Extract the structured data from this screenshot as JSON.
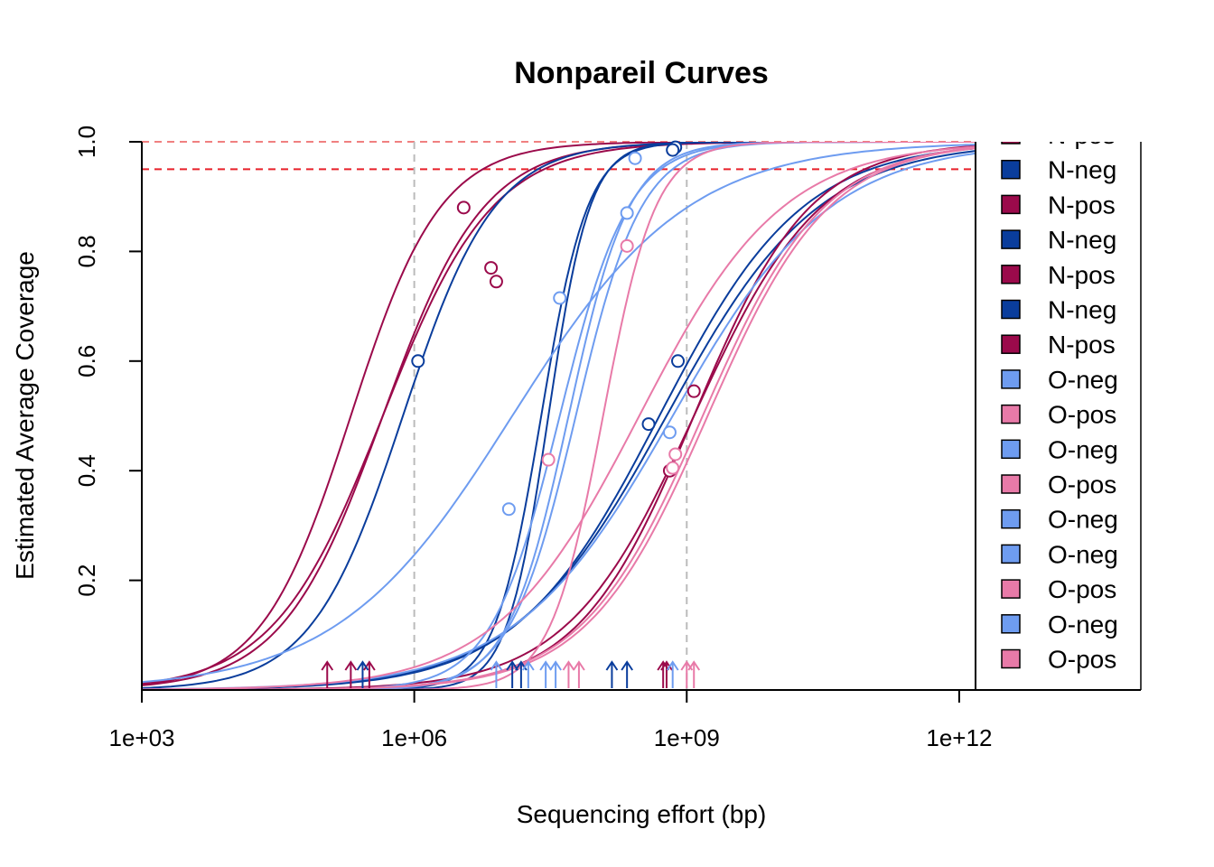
{
  "chart_data": {
    "type": "line",
    "title": "Nonpareil Curves",
    "xlabel": "Sequencing effort (bp)",
    "ylabel": "Estimated Average Coverage",
    "x_scale": "log10",
    "xlim": [
      1000,
      100000000000000
    ],
    "ylim": [
      0,
      1
    ],
    "x_ticks": [
      {
        "value": 1000,
        "label": "1e+03"
      },
      {
        "value": 1000000,
        "label": "1e+06"
      },
      {
        "value": 1000000000,
        "label": "1e+09"
      },
      {
        "value": 1000000000000,
        "label": "1e+12"
      }
    ],
    "y_ticks": [
      {
        "value": 0.2,
        "label": "0.2"
      },
      {
        "value": 0.4,
        "label": "0.4"
      },
      {
        "value": 0.6,
        "label": "0.6"
      },
      {
        "value": 0.8,
        "label": "0.8"
      },
      {
        "value": 1.0,
        "label": "1.0"
      }
    ],
    "reference_lines": [
      {
        "axis": "y",
        "value": 1.0,
        "color": "#f08080",
        "style": "dashed"
      },
      {
        "axis": "y",
        "value": 0.95,
        "color": "#e8202a",
        "style": "dashed"
      },
      {
        "axis": "x",
        "value": 1000000,
        "color": "#bbbbbb",
        "style": "dashed"
      },
      {
        "axis": "x",
        "value": 1000000000,
        "color": "#bbbbbb",
        "style": "dashed"
      }
    ],
    "colors": {
      "N-neg": "#0a3d9c",
      "N-pos": "#9b0a4b",
      "O-neg": "#6e9cf0",
      "O-pos": "#e87aa8"
    },
    "series": [
      {
        "group": "N-pos",
        "x50": 200000,
        "slope": 0.88,
        "point_x": 3500000,
        "point_y": 0.88,
        "arrow_x": 110000
      },
      {
        "group": "N-pos",
        "x50": 450000,
        "slope": 0.78,
        "point_x": 7000000,
        "point_y": 0.77,
        "arrow_x": 200000
      },
      {
        "group": "N-pos",
        "x50": 450000,
        "slope": 0.72,
        "point_x": 8000000,
        "point_y": 0.745,
        "arrow_x": 320000
      },
      {
        "group": "N-neg",
        "x50": 750000,
        "slope": 0.86,
        "point_x": 1100000,
        "point_y": 0.6,
        "arrow_x": 270000
      },
      {
        "group": "N-neg",
        "x50": 30000000,
        "slope": 1.9,
        "point_x": 750000000,
        "point_y": 0.99,
        "arrow_x": 12000000
      },
      {
        "group": "N-neg",
        "x50": 25000000,
        "slope": 1.7,
        "point_x": 700000000,
        "point_y": 0.985,
        "arrow_x": 15000000
      },
      {
        "group": "N-neg",
        "x50": 500000000,
        "slope": 0.55,
        "point_x": 800000000,
        "point_y": 0.6,
        "arrow_x": 150000000
      },
      {
        "group": "N-neg",
        "x50": 600000000,
        "slope": 0.52,
        "point_x": 380000000,
        "point_y": 0.485,
        "arrow_x": 220000000
      },
      {
        "group": "N-pos",
        "x50": 1200000000,
        "slope": 0.62,
        "point_x": 1200000000,
        "point_y": 0.545,
        "arrow_x": 550000000
      },
      {
        "group": "N-pos",
        "x50": 1200000000,
        "slope": 0.68,
        "point_x": 650000000,
        "point_y": 0.4,
        "arrow_x": 600000000
      },
      {
        "group": "O-neg",
        "x50": 12000000,
        "slope": 0.45,
        "point_x": 11000000,
        "point_y": 0.33,
        "arrow_x": 8000000
      },
      {
        "group": "O-neg",
        "x50": 40000000,
        "slope": 1.15,
        "point_x": 40000000,
        "point_y": 0.715,
        "arrow_x": 18000000
      },
      {
        "group": "O-neg",
        "x50": 50000000,
        "slope": 1.3,
        "point_x": 220000000,
        "point_y": 0.87,
        "arrow_x": 28000000
      },
      {
        "group": "O-neg",
        "x50": 60000000,
        "slope": 1.2,
        "point_x": 270000000,
        "point_y": 0.97,
        "arrow_x": 36000000
      },
      {
        "group": "O-neg",
        "x50": 700000000,
        "slope": 0.5,
        "point_x": 650000000,
        "point_y": 0.47,
        "arrow_x": 700000000
      },
      {
        "group": "O-pos",
        "x50": 120000000,
        "slope": 1.5,
        "point_x": 220000000,
        "point_y": 0.81,
        "arrow_x": 50000000
      },
      {
        "group": "O-pos",
        "x50": 300000000,
        "slope": 0.55,
        "point_x": 30000000,
        "point_y": 0.42,
        "arrow_x": 65000000
      },
      {
        "group": "O-pos",
        "x50": 1500000000,
        "slope": 0.65,
        "point_x": 750000000,
        "point_y": 0.43,
        "arrow_x": 1000000000
      },
      {
        "group": "O-pos",
        "x50": 1700000000,
        "slope": 0.65,
        "point_x": 700000000,
        "point_y": 0.405,
        "arrow_x": 1200000000
      }
    ],
    "legend": {
      "placement": "right",
      "entries": [
        "N-pos",
        "N-neg",
        "N-pos",
        "N-neg",
        "N-pos",
        "N-neg",
        "N-pos",
        "O-neg",
        "O-pos",
        "O-neg",
        "O-pos",
        "O-neg",
        "O-neg",
        "O-pos",
        "O-neg",
        "O-pos"
      ]
    }
  }
}
